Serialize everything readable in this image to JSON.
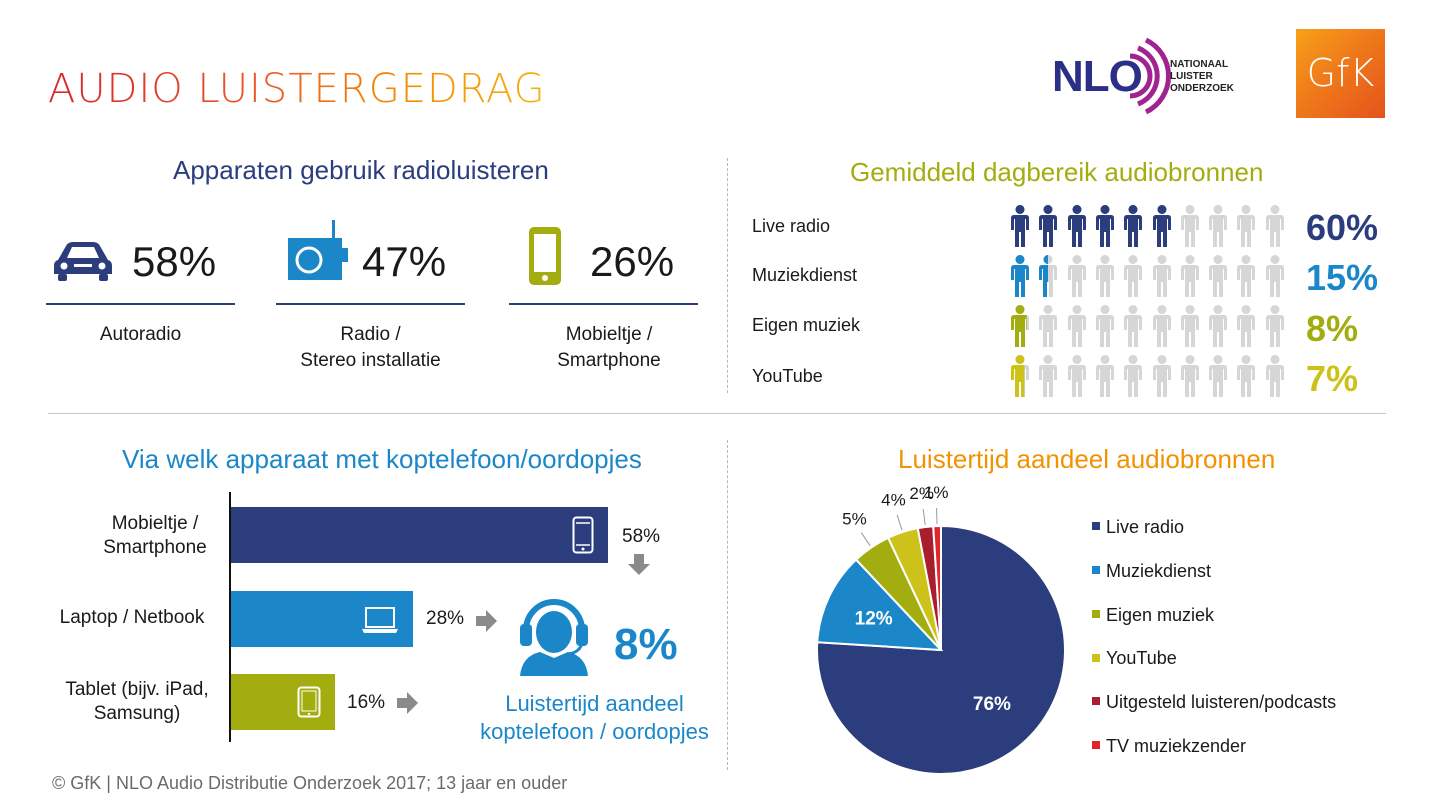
{
  "title": "AUDIO LUISTERGEDRAG",
  "logos": {
    "nlo_text": "NLO",
    "nlo_sub": [
      "NATIONAAL",
      "LUISTER",
      "ONDERZOEK"
    ],
    "gfk_text": "GfK"
  },
  "colors": {
    "navy": "#2b3d7d",
    "blue": "#1b87c9",
    "olive": "#a3ad0f",
    "yellow": "#cdc21a",
    "darkred": "#a81e2f",
    "red": "#e2242b",
    "grey_person": "#d6d6d6",
    "arrow": "#8a8a8a"
  },
  "devices": {
    "title": "Apparaten gebruik radioluisteren",
    "items": [
      {
        "icon": "car-icon",
        "pct": "58%",
        "label_lines": [
          "Autoradio"
        ]
      },
      {
        "icon": "radio-icon",
        "pct": "47%",
        "label_lines": [
          "Radio /",
          "Stereo installatie"
        ]
      },
      {
        "icon": "smartphone-icon",
        "pct": "26%",
        "label_lines": [
          "Mobieltje /",
          "Smartphone"
        ]
      }
    ]
  },
  "reach": {
    "title": "Gemiddeld dagbereik audiobronnen",
    "rows": [
      {
        "label": "Live radio",
        "pct": "60%",
        "value": 60,
        "color": "#2b3d7d"
      },
      {
        "label": "Muziekdienst",
        "pct": "15%",
        "value": 15,
        "color": "#1b87c9"
      },
      {
        "label": "Eigen muziek",
        "pct": "8%",
        "value": 8,
        "color": "#a3ad0f"
      },
      {
        "label": "YouTube",
        "pct": "7%",
        "value": 7,
        "color": "#cdc21a"
      }
    ]
  },
  "headphones": {
    "title": "Via welk apparaat met koptelefoon/oordopjes",
    "bars": [
      {
        "label_lines": [
          "Mobieltje /",
          "Smartphone"
        ],
        "value": 58,
        "pct": "58%",
        "color": "#2b3d7d",
        "icon": "smartphone-icon"
      },
      {
        "label_lines": [
          "Laptop / Netbook"
        ],
        "value": 28,
        "pct": "28%",
        "color": "#1b87c9",
        "icon": "laptop-icon"
      },
      {
        "label_lines": [
          "Tablet (bijv. iPad,",
          "Samsung)"
        ],
        "value": 16,
        "pct": "16%",
        "color": "#a3ad0f",
        "icon": "tablet-icon"
      }
    ],
    "share_pct": "8%",
    "share_label_lines": [
      "Luistertijd aandeel",
      "koptelefoon / oordopjes"
    ]
  },
  "chart_data": {
    "type": "pie",
    "title": "Luistertijd aandeel audiobronnen",
    "slices": [
      {
        "name": "Live radio",
        "value": 76,
        "label": "76%",
        "color": "#2b3d7d"
      },
      {
        "name": "Muziekdienst",
        "value": 12,
        "label": "12%",
        "color": "#1b87c9"
      },
      {
        "name": "Eigen muziek",
        "value": 5,
        "label": "5%",
        "color": "#a3ad0f"
      },
      {
        "name": "YouTube",
        "value": 4,
        "label": "4%",
        "color": "#cdc21a"
      },
      {
        "name": "Uitgesteld luisteren/podcasts",
        "value": 2,
        "label": "2%",
        "color": "#a81e2f"
      },
      {
        "name": "TV muziekzender",
        "value": 1,
        "label": "1%",
        "color": "#e2242b"
      }
    ],
    "legend": "right"
  },
  "footer": "© GfK | NLO Audio Distributie Onderzoek 2017;  13 jaar en ouder"
}
